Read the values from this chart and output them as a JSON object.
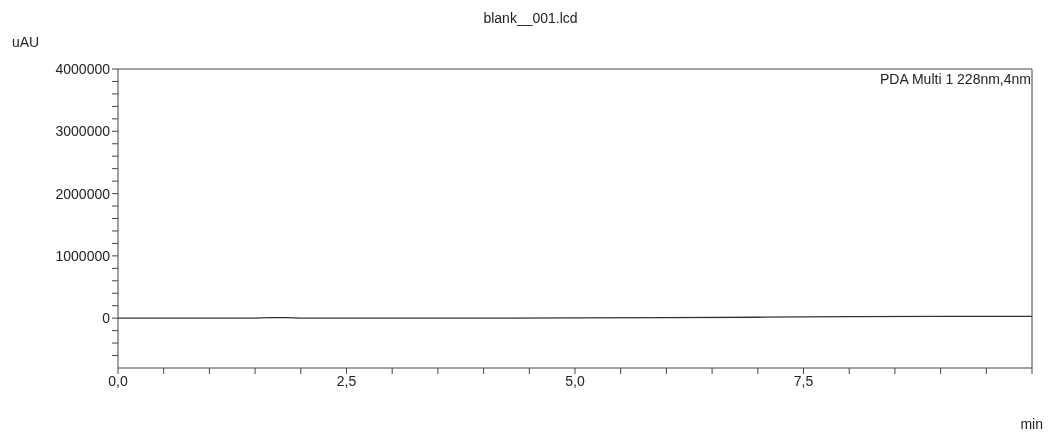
{
  "chart_data": {
    "type": "line",
    "title": "blank__001.lcd",
    "ylabel": "uAU",
    "xlabel": "min",
    "annotations": [
      "PDA Multi 1 228nm,4nm"
    ],
    "series": [
      {
        "color": "#333333",
        "x": [
          0,
          0.5,
          1,
          1.5,
          1.65,
          1.75,
          1.85,
          2,
          2.5,
          3,
          4,
          5,
          6,
          7,
          7.5,
          8,
          9,
          10
        ],
        "values": [
          0,
          0,
          0,
          0,
          8000,
          10000,
          8000,
          0,
          0,
          0,
          0,
          5000,
          10000,
          15000,
          20000,
          25000,
          30000,
          30000
        ]
      }
    ],
    "xlim": [
      0,
      10
    ],
    "xticks": [
      {
        "value": 0,
        "label": "0,0"
      },
      {
        "value": 0.5,
        "label": null
      },
      {
        "value": 1,
        "label": null
      },
      {
        "value": 1.5,
        "label": null
      },
      {
        "value": 2,
        "label": null
      },
      {
        "value": 2.5,
        "label": "2,5"
      },
      {
        "value": 3,
        "label": null
      },
      {
        "value": 3.5,
        "label": null
      },
      {
        "value": 4,
        "label": null
      },
      {
        "value": 4.5,
        "label": null
      },
      {
        "value": 5,
        "label": "5,0"
      },
      {
        "value": 5.5,
        "label": null
      },
      {
        "value": 6,
        "label": null
      },
      {
        "value": 6.5,
        "label": null
      },
      {
        "value": 7,
        "label": null
      },
      {
        "value": 7.5,
        "label": "7,5"
      },
      {
        "value": 8,
        "label": null
      },
      {
        "value": 8.5,
        "label": null
      },
      {
        "value": 9,
        "label": null
      },
      {
        "value": 9.5,
        "label": null
      },
      {
        "value": 10,
        "label": null
      }
    ],
    "ylim": [
      -800000,
      4000000
    ],
    "yticks": [
      {
        "value": -600000,
        "label": null
      },
      {
        "value": -400000,
        "label": null
      },
      {
        "value": -200000,
        "label": null
      },
      0,
      {
        "value": 200000,
        "label": null
      },
      {
        "value": 400000,
        "label": null
      },
      {
        "value": 600000,
        "label": null
      },
      {
        "value": 800000,
        "label": null
      },
      1000000,
      {
        "value": 1200000,
        "label": null
      },
      {
        "value": 1400000,
        "label": null
      },
      {
        "value": 1600000,
        "label": null
      },
      {
        "value": 1800000,
        "label": null
      },
      2000000,
      {
        "value": 2200000,
        "label": null
      },
      {
        "value": 2400000,
        "label": null
      },
      {
        "value": 2600000,
        "label": null
      },
      {
        "value": 2800000,
        "label": null
      },
      3000000,
      {
        "value": 3200000,
        "label": null
      },
      {
        "value": 3400000,
        "label": null
      },
      {
        "value": 3600000,
        "label": null
      },
      {
        "value": 3800000,
        "label": null
      },
      4000000
    ],
    "grid": false,
    "legend": false,
    "marker": "none",
    "line_style": "solid"
  }
}
